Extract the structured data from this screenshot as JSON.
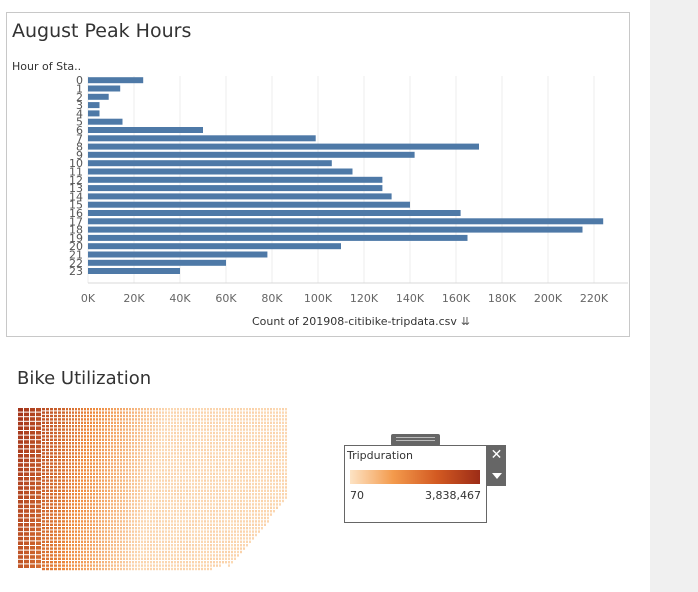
{
  "chart_title": "August Peak Hours",
  "row_header": "Hour of Sta..",
  "axis_title": "Count of 201908-citibike-tripdata.csv",
  "sort_icon": "sort-descending-icon",
  "bar_color": "#4e79a7",
  "chart_data": {
    "type": "bar",
    "orientation": "horizontal",
    "categories": [
      "0",
      "1",
      "2",
      "3",
      "4",
      "5",
      "6",
      "7",
      "8",
      "9",
      "10",
      "11",
      "12",
      "13",
      "14",
      "15",
      "16",
      "17",
      "18",
      "19",
      "20",
      "21",
      "22",
      "23"
    ],
    "values": [
      24000,
      14000,
      9000,
      5000,
      5000,
      15000,
      50000,
      99000,
      170000,
      142000,
      106000,
      115000,
      128000,
      128000,
      132000,
      140000,
      162000,
      224000,
      215000,
      165000,
      110000,
      78000,
      60000,
      40000
    ],
    "xlabel": "Count of 201908-citibike-tripdata.csv",
    "ylabel": "Hour of Sta..",
    "xlim": [
      0,
      235000
    ],
    "xticks": [
      "0K",
      "20K",
      "40K",
      "60K",
      "80K",
      "100K",
      "120K",
      "140K",
      "160K",
      "180K",
      "200K",
      "220K"
    ],
    "grid": true
  },
  "utilization": {
    "title": "Bike Utilization",
    "legend": {
      "title": "Tripduration",
      "min_label": "70",
      "max_label": "3,838,467",
      "color_low": "#fde3c4",
      "color_high": "#9c2c17",
      "close_icon": "close-icon",
      "dropdown_icon": "chevron-down-icon"
    }
  }
}
